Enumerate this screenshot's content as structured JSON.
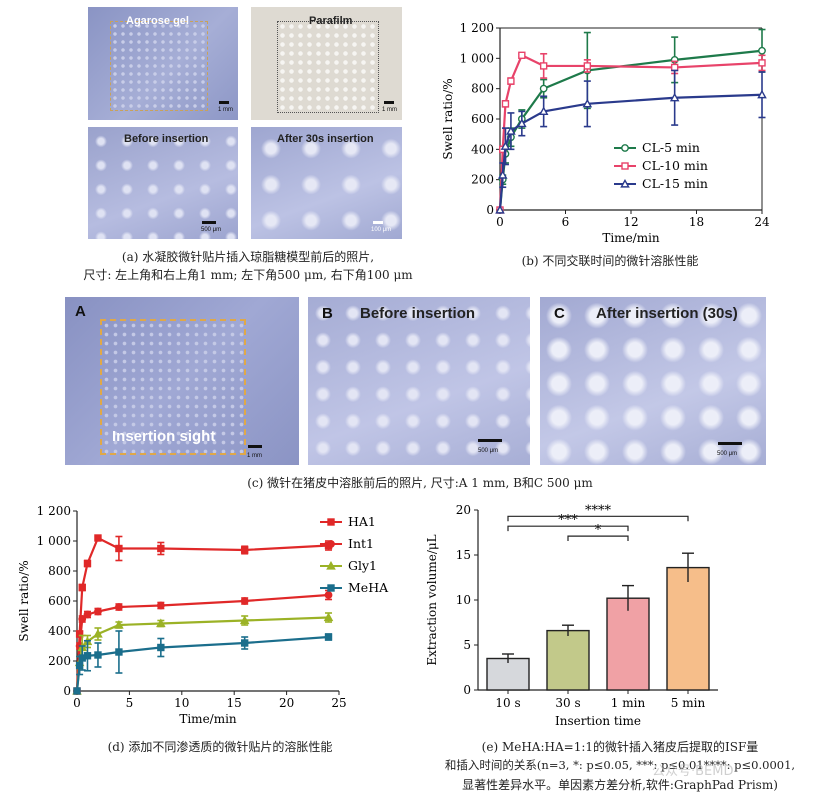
{
  "panel_a": {
    "photos": {
      "agarose": {
        "label": "Agarose gel",
        "scale": "1 mm"
      },
      "parafilm": {
        "label": "Parafilm",
        "scale": "1 mm"
      },
      "before": {
        "label": "Before insertion",
        "scale": "500 μm"
      },
      "after": {
        "label": "After 30s insertion",
        "scale": "100 μm"
      }
    },
    "caption_line1": "(a) 水凝胶微针贴片插入琼脂糖模型前后的照片,",
    "caption_line2": "尺寸: 左上角和右上角1 mm; 左下角500 μm, 右下角100 μm"
  },
  "panel_b_caption": "(b) 不同交联时间的微针溶胀性能",
  "panel_c": {
    "A": {
      "letter": "A",
      "label": "Insertion sight",
      "scale": "1 mm"
    },
    "B": {
      "letter": "B",
      "label": "Before insertion",
      "scale": "500 μm"
    },
    "C": {
      "letter": "C",
      "label": "After insertion (30s)",
      "scale": "500 μm"
    },
    "caption": "(c) 微针在猪皮中溶胀前后的照片, 尺寸:A 1 mm, B和C 500 μm"
  },
  "panel_d_caption": "(d) 添加不同渗透质的微针贴片的溶胀性能",
  "panel_e_caption": {
    "line1": "(e) MeHA:HA=1:1的微针插入猪皮后提取的ISF量",
    "line2": "和插入时间的关系(n=3, *: p≤0.05, ***: p≤0.01****: p≤0.0001,",
    "line3": "显著性差异水平。单因素方差分析,软件:GraphPad Prism)"
  },
  "watermark": "公众号·BEMD",
  "colors": {
    "green": "#1e7a4a",
    "pink": "#e8436a",
    "navy": "#2a3a8c",
    "red": "#e02828",
    "olive": "#9bb226",
    "teal": "#1b6e8c",
    "bar1": "#d6d8dc",
    "bar2": "#c2c98a",
    "bar3": "#f0a1a5",
    "bar4": "#f6be8a"
  },
  "chart_data": [
    {
      "id": "b",
      "type": "line",
      "xlabel": "Time/min",
      "ylabel": "Swell ratio/%",
      "xlim": [
        0,
        24
      ],
      "ylim": [
        0,
        1200
      ],
      "xticks": [
        0,
        6,
        12,
        18,
        24
      ],
      "yticks": [
        0,
        200,
        400,
        600,
        800,
        1000,
        1200
      ],
      "ytick_labels": [
        "0",
        "200",
        "400",
        "600",
        "800",
        "1 000",
        "1 200"
      ],
      "legend_position": "lower-right",
      "series": [
        {
          "name": "CL-5 min",
          "color": "green",
          "marker": "circle",
          "x": [
            0,
            0.25,
            0.5,
            1,
            2,
            4,
            8,
            16,
            24
          ],
          "y": [
            0,
            200,
            370,
            480,
            600,
            800,
            920,
            990,
            1050
          ],
          "err": [
            0,
            30,
            60,
            60,
            60,
            60,
            250,
            150,
            140
          ]
        },
        {
          "name": "CL-10 min",
          "color": "pink",
          "marker": "square",
          "x": [
            0,
            0.25,
            0.5,
            1,
            2,
            4,
            8,
            16,
            24
          ],
          "y": [
            0,
            400,
            700,
            850,
            1020,
            950,
            950,
            940,
            970
          ],
          "err": [
            0,
            20,
            20,
            20,
            10,
            80,
            40,
            40,
            50
          ]
        },
        {
          "name": "CL-15 min",
          "color": "navy",
          "marker": "triangle",
          "x": [
            0,
            0.25,
            0.5,
            1,
            2,
            4,
            8,
            16,
            24
          ],
          "y": [
            0,
            230,
            420,
            520,
            570,
            650,
            700,
            740,
            760
          ],
          "err": [
            0,
            80,
            120,
            120,
            80,
            100,
            150,
            180,
            150
          ]
        }
      ]
    },
    {
      "id": "d",
      "type": "line",
      "xlabel": "Time/min",
      "ylabel": "Swell ratio/%",
      "xlim": [
        0,
        25
      ],
      "ylim": [
        0,
        1200
      ],
      "xticks": [
        0,
        5,
        10,
        15,
        20,
        25
      ],
      "yticks": [
        0,
        200,
        400,
        600,
        800,
        1000,
        1200
      ],
      "ytick_labels": [
        "0",
        "200",
        "400",
        "600",
        "800",
        "1 000",
        "1 200"
      ],
      "legend_position": "top-right",
      "series": [
        {
          "name": "HA1",
          "color": "red",
          "marker": "square",
          "x": [
            0,
            0.25,
            0.5,
            1,
            2,
            4,
            8,
            16,
            24
          ],
          "y": [
            0,
            380,
            690,
            850,
            1020,
            950,
            950,
            940,
            970
          ],
          "err": [
            0,
            20,
            20,
            20,
            10,
            80,
            40,
            25,
            30
          ]
        },
        {
          "name": "Int1",
          "color": "red",
          "marker": "circle",
          "x": [
            0,
            0.25,
            0.5,
            1,
            2,
            4,
            8,
            16,
            24
          ],
          "y": [
            0,
            300,
            480,
            510,
            530,
            560,
            570,
            600,
            640
          ],
          "err": [
            0,
            20,
            20,
            20,
            20,
            20,
            20,
            20,
            30
          ]
        },
        {
          "name": "Gly1",
          "color": "olive",
          "marker": "triangle",
          "x": [
            0,
            0.25,
            0.5,
            1,
            2,
            4,
            8,
            16,
            24
          ],
          "y": [
            0,
            190,
            290,
            330,
            380,
            440,
            450,
            470,
            490
          ],
          "err": [
            0,
            40,
            80,
            40,
            40,
            20,
            20,
            30,
            30
          ]
        },
        {
          "name": "MeHA",
          "color": "teal",
          "marker": "square",
          "x": [
            0,
            0.25,
            0.5,
            1,
            2,
            4,
            8,
            16,
            24
          ],
          "y": [
            0,
            170,
            220,
            235,
            240,
            260,
            290,
            320,
            360
          ],
          "err": [
            0,
            60,
            80,
            100,
            80,
            140,
            60,
            40,
            20
          ]
        }
      ]
    },
    {
      "id": "e",
      "type": "bar",
      "xlabel": "Insertion time",
      "ylabel": "Extraction volume/μL",
      "ylim": [
        0,
        20
      ],
      "yticks": [
        0,
        5,
        10,
        15,
        20
      ],
      "categories": [
        "10 s",
        "30 s",
        "1 min",
        "5 min"
      ],
      "values": [
        3.5,
        6.6,
        10.2,
        13.6
      ],
      "err": [
        0.5,
        0.6,
        1.4,
        1.6
      ],
      "bar_colors": [
        "bar1",
        "bar2",
        "bar3",
        "bar4"
      ],
      "significance": [
        {
          "from": 1,
          "to": 2,
          "label": "*"
        },
        {
          "from": 0,
          "to": 2,
          "label": "***"
        },
        {
          "from": 0,
          "to": 3,
          "label": "****"
        }
      ]
    }
  ]
}
